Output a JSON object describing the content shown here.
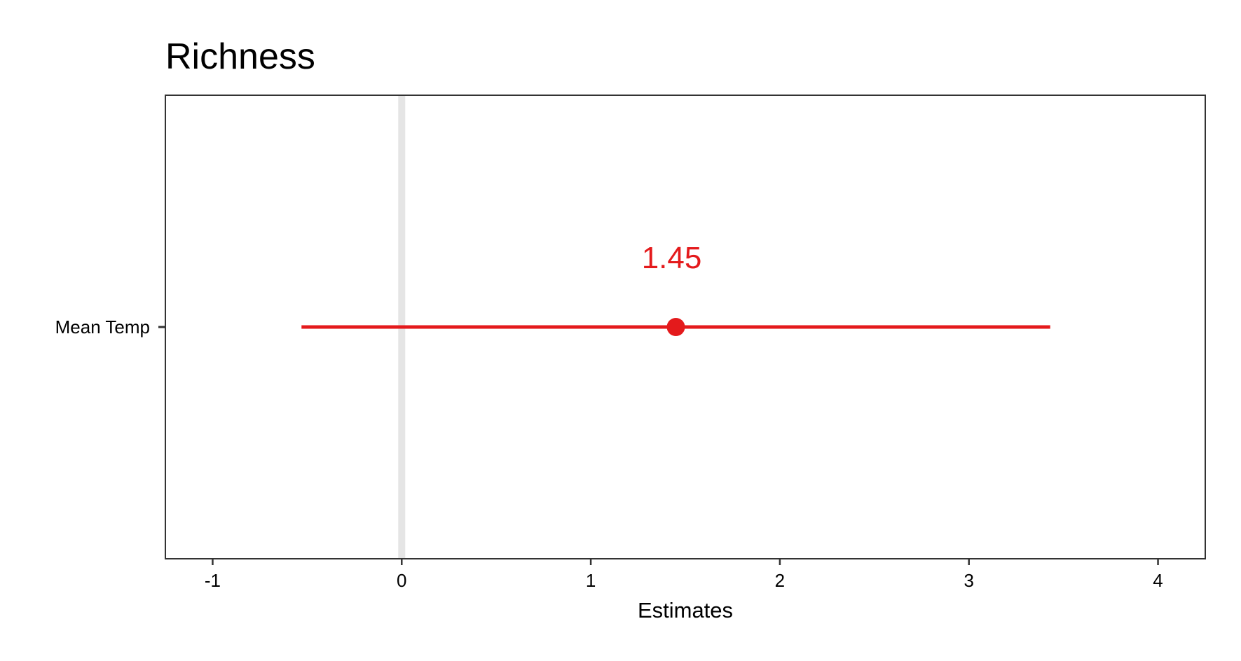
{
  "chart_data": {
    "type": "scatter",
    "title": "Richness",
    "xlabel": "Estimates",
    "ylabel": "",
    "xlim": [
      -1.25,
      4.25
    ],
    "x_ticks": [
      -1,
      0,
      1,
      2,
      3,
      4
    ],
    "x_tick_labels": [
      "-1",
      "0",
      "1",
      "2",
      "3",
      "4"
    ],
    "reference_line_x": 0,
    "grid": false,
    "categories": [
      "Mean Temp"
    ],
    "series": [
      {
        "estimate": 1.45,
        "ci_low": -0.53,
        "ci_high": 3.43,
        "label": "1.45"
      }
    ],
    "colors": {
      "point": "#e41a1c",
      "reference_line": "#e5e5e5",
      "panel_border": "#333333"
    }
  }
}
